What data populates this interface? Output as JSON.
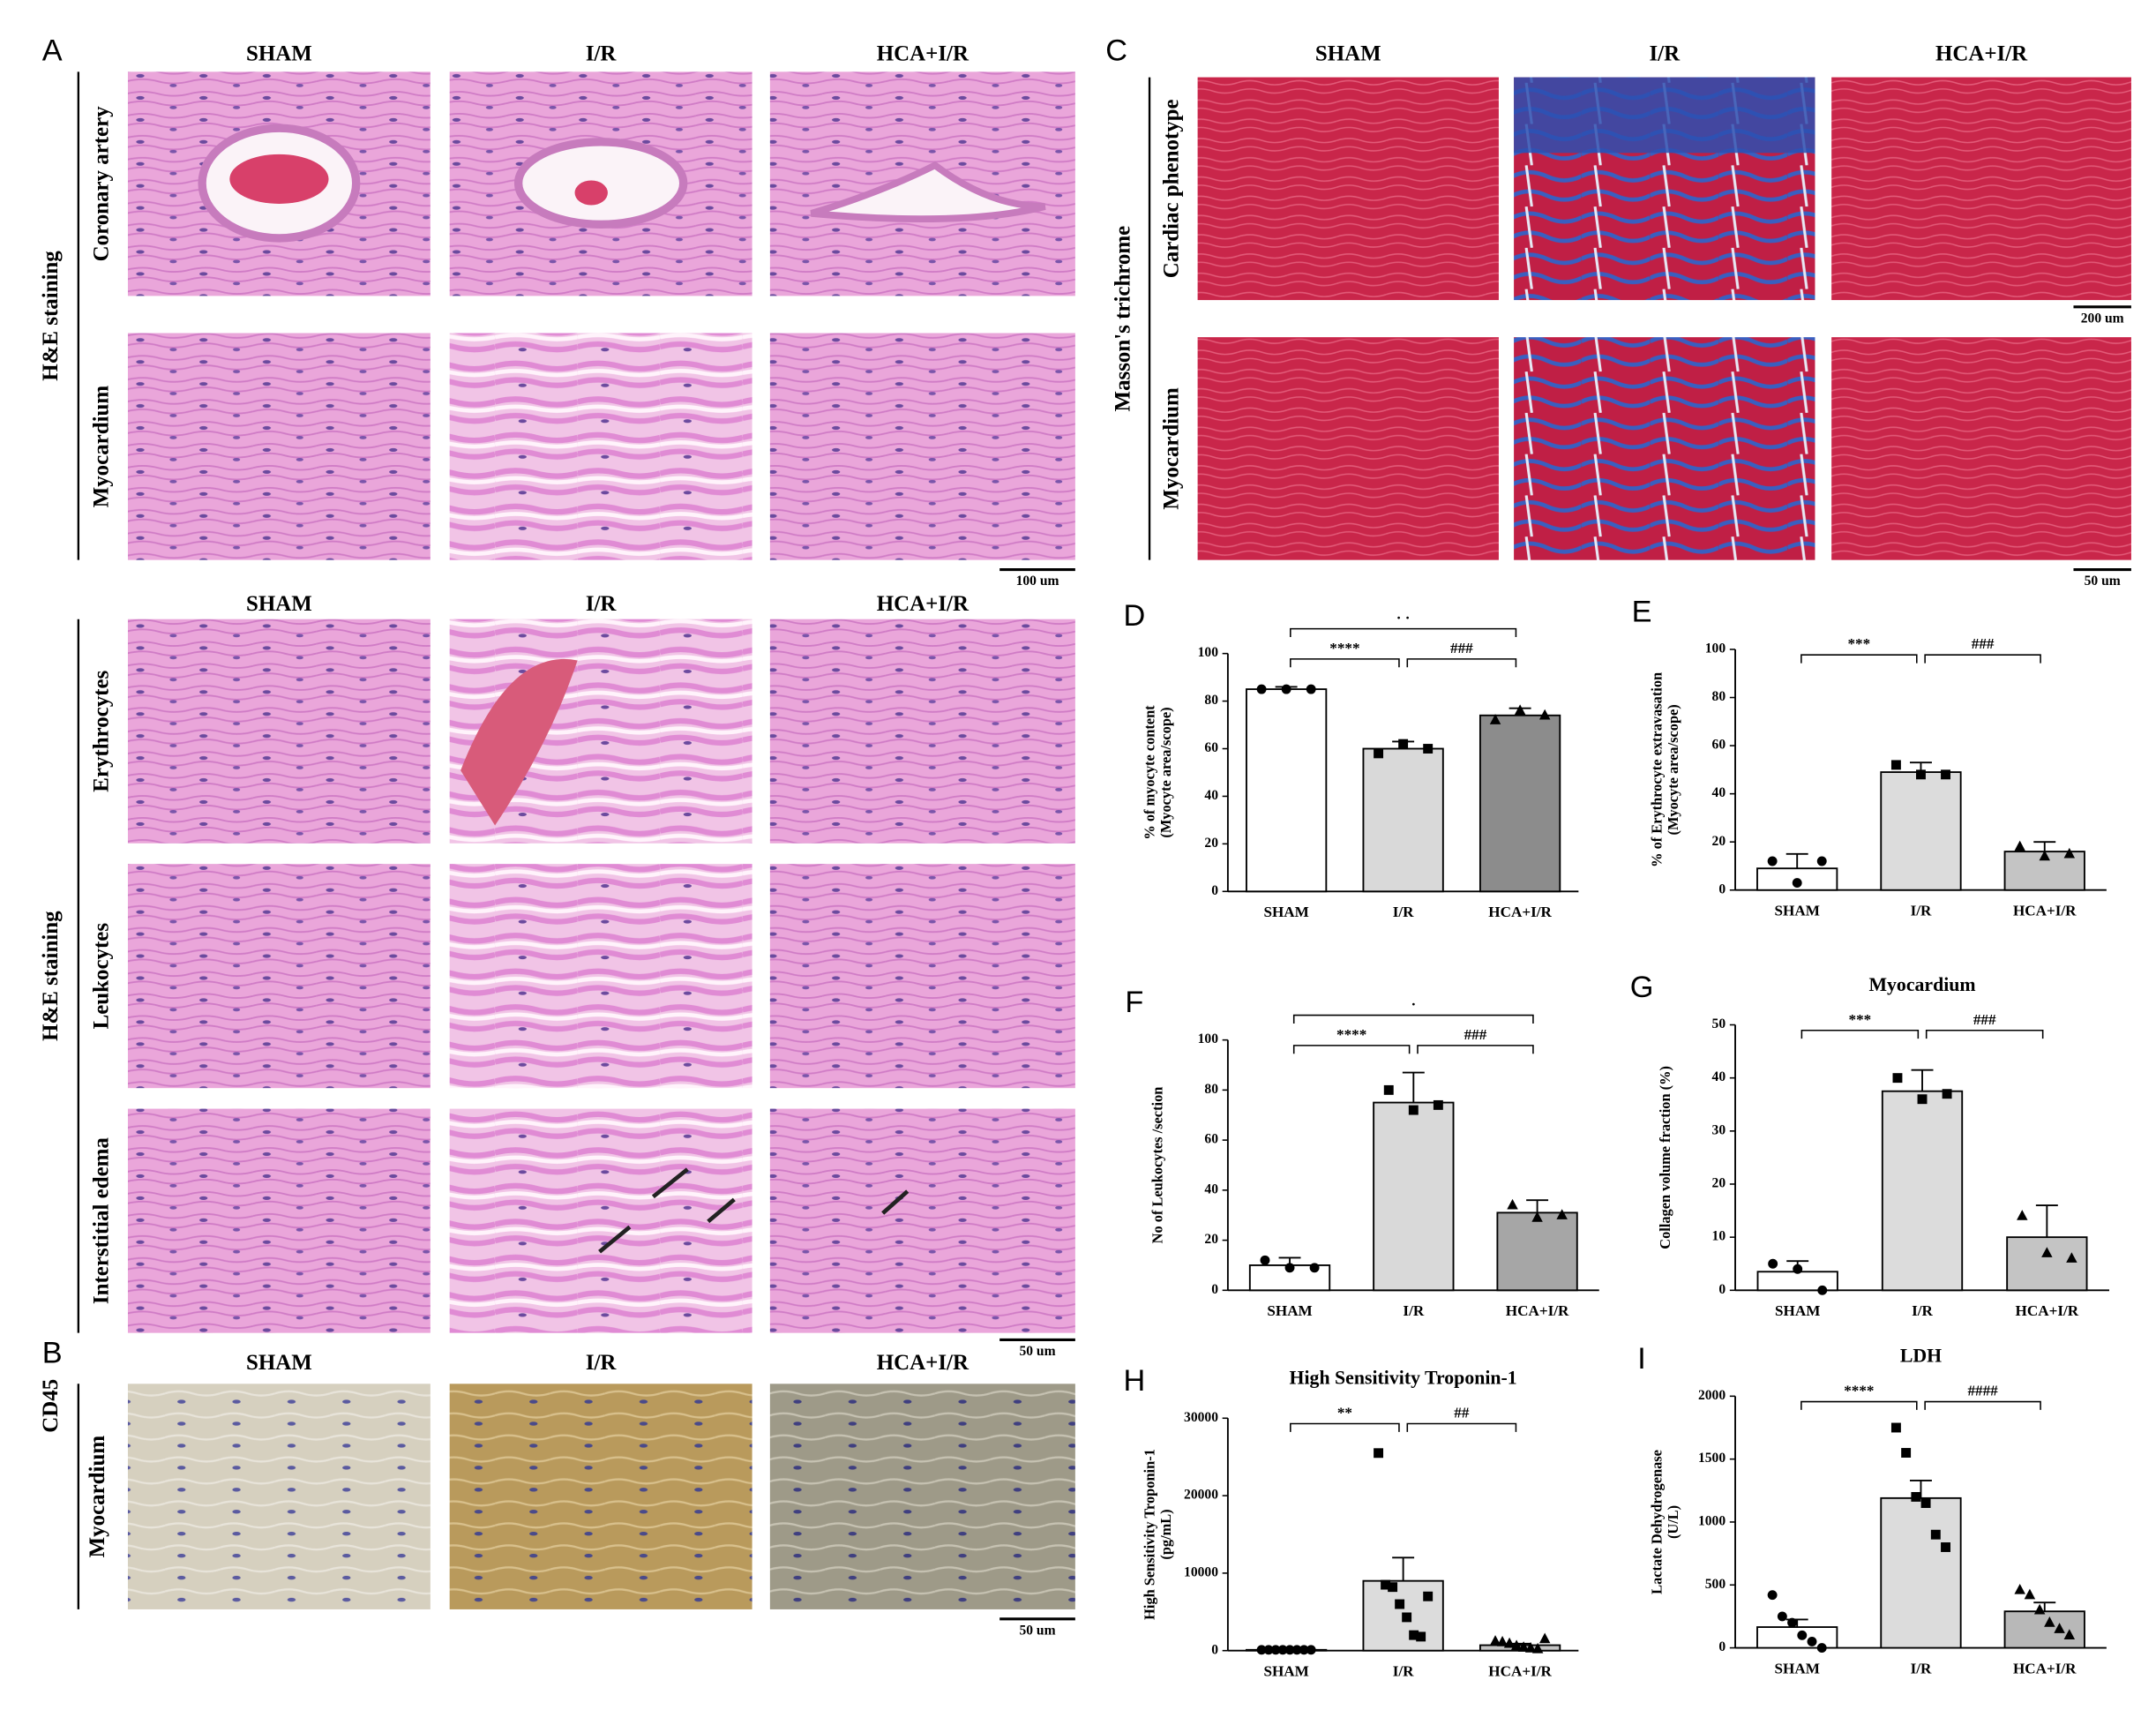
{
  "image_panels": [
    {
      "label": "A",
      "columns": [
        "SHAM",
        "I/R",
        "HCA+I/R"
      ],
      "section": "H&E staining",
      "rows": [
        "Coronary artery",
        "Myocardium"
      ],
      "scale_bars": [
        "100 um"
      ]
    },
    {
      "columns": [
        "SHAM",
        "I/R",
        "HCA+I/R"
      ],
      "section": "H&E staining",
      "rows": [
        "Erythrocytes",
        "Leukocytes",
        "Interstitial edema"
      ],
      "scale_bars": [
        "50 um"
      ]
    },
    {
      "label": "B",
      "columns": [
        "SHAM",
        "I/R",
        "HCA+I/R"
      ],
      "section": "CD45",
      "rows": [
        "Myocardium"
      ],
      "scale_bars": [
        "50 um"
      ]
    },
    {
      "label": "C",
      "columns": [
        "SHAM",
        "I/R",
        "HCA+I/R"
      ],
      "section": "Masson's trichrome",
      "rows": [
        "Cardiac phenotype",
        "Myocardium"
      ],
      "scale_bars": [
        "200 um",
        "50 um"
      ]
    }
  ],
  "chart_data": [
    {
      "type": "bar",
      "label": "D",
      "y_label": [
        "% of myocyte content",
        "(Myocyte area/scope)"
      ],
      "categories": [
        "SHAM",
        "I/R",
        "HCA+I/R"
      ],
      "values": [
        85,
        60,
        74
      ],
      "errors": [
        1,
        3,
        3
      ],
      "points": [
        [
          85,
          85,
          85
        ],
        [
          58,
          62,
          60
        ],
        [
          72,
          76,
          74
        ]
      ],
      "colors": [
        "#ffffff",
        "#d9d9d9",
        "#8c8c8c"
      ],
      "markers": [
        "circle",
        "square",
        "triangle"
      ],
      "ylim": [
        0,
        100
      ],
      "yticks": [
        0,
        20,
        40,
        60,
        80,
        100
      ],
      "comparisons": [
        {
          "text": "****",
          "between": [
            0,
            1
          ]
        },
        {
          "text": "###",
          "between": [
            1,
            2
          ]
        },
        {
          "text": "· ·",
          "between": [
            0,
            2
          ]
        }
      ]
    },
    {
      "type": "bar",
      "label": "E",
      "y_label": [
        "% of Erythrocyte extravasation",
        "(Myocyte area/scope)"
      ],
      "categories": [
        "SHAM",
        "I/R",
        "HCA+I/R"
      ],
      "values": [
        9,
        49,
        16
      ],
      "errors": [
        6,
        4,
        4
      ],
      "points": [
        [
          12,
          3,
          12
        ],
        [
          52,
          48,
          48
        ],
        [
          18,
          14,
          15
        ]
      ],
      "colors": [
        "#ffffff",
        "#dcdcdc",
        "#c4c4c4"
      ],
      "markers": [
        "circle",
        "square",
        "triangle"
      ],
      "ylim": [
        0,
        100
      ],
      "yticks": [
        0,
        20,
        40,
        60,
        80,
        100
      ],
      "comparisons": [
        {
          "text": "***",
          "between": [
            0,
            1
          ]
        },
        {
          "text": "###",
          "between": [
            1,
            2
          ]
        }
      ]
    },
    {
      "type": "bar",
      "label": "F",
      "y_label": [
        "No of Leukocytes /section"
      ],
      "categories": [
        "SHAM",
        "I/R",
        "HCA+I/R"
      ],
      "values": [
        10,
        75,
        31
      ],
      "errors": [
        3,
        12,
        5
      ],
      "points": [
        [
          12,
          9,
          9
        ],
        [
          80,
          72,
          74
        ],
        [
          34,
          29,
          30
        ]
      ],
      "colors": [
        "#ffffff",
        "#d9d9d9",
        "#a6a6a6"
      ],
      "markers": [
        "circle",
        "square",
        "triangle"
      ],
      "ylim": [
        0,
        100
      ],
      "yticks": [
        0,
        20,
        40,
        60,
        80,
        100
      ],
      "comparisons": [
        {
          "text": "****",
          "between": [
            0,
            1
          ]
        },
        {
          "text": "###",
          "between": [
            1,
            2
          ]
        },
        {
          "text": "·",
          "between": [
            0,
            2
          ]
        }
      ]
    },
    {
      "type": "bar",
      "label": "G",
      "title": "Myocardium",
      "y_label": [
        "Collagen volume fraction (%)"
      ],
      "categories": [
        "SHAM",
        "I/R",
        "HCA+I/R"
      ],
      "values": [
        3.5,
        37.5,
        10
      ],
      "errors": [
        2,
        4,
        6
      ],
      "points": [
        [
          5,
          4,
          0
        ],
        [
          40,
          36,
          37
        ],
        [
          14,
          7,
          6
        ]
      ],
      "colors": [
        "#ffffff",
        "#dcdcdc",
        "#c4c4c4"
      ],
      "markers": [
        "circle",
        "square",
        "triangle"
      ],
      "ylim": [
        0,
        50
      ],
      "yticks": [
        0,
        10,
        20,
        30,
        40,
        50
      ],
      "comparisons": [
        {
          "text": "***",
          "between": [
            0,
            1
          ]
        },
        {
          "text": "###",
          "between": [
            1,
            2
          ]
        }
      ]
    },
    {
      "type": "bar",
      "label": "H",
      "title": "High Sensitivity Troponin-1",
      "y_label": [
        "High Sensitivity Troponin-1",
        "(pg/mL)"
      ],
      "categories": [
        "SHAM",
        "I/R",
        "HCA+I/R"
      ],
      "values": [
        100,
        9000,
        700
      ],
      "errors": [
        50,
        3000,
        200
      ],
      "points": [
        [
          100,
          100,
          100,
          100,
          100,
          100,
          100,
          100
        ],
        [
          25500,
          8500,
          8200,
          6000,
          4300,
          2000,
          1800,
          7000
        ],
        [
          1200,
          1100,
          900,
          600,
          400,
          300,
          200,
          1500
        ]
      ],
      "colors": [
        "#ffffff",
        "#dcdcdc",
        "#c4c4c4"
      ],
      "markers": [
        "circle",
        "square",
        "triangle"
      ],
      "ylim": [
        0,
        30000
      ],
      "yticks": [
        0,
        10000,
        20000,
        30000
      ],
      "comparisons": [
        {
          "text": "**",
          "between": [
            0,
            1
          ]
        },
        {
          "text": "##",
          "between": [
            1,
            2
          ]
        }
      ]
    },
    {
      "type": "bar",
      "label": "I",
      "title": "LDH",
      "y_label": [
        "Lactate Dehydrogenase",
        "(U/L)"
      ],
      "categories": [
        "SHAM",
        "I/R",
        "HCA+I/R"
      ],
      "values": [
        165,
        1190,
        290
      ],
      "errors": [
        60,
        140,
        70
      ],
      "points": [
        [
          420,
          250,
          200,
          100,
          50,
          0
        ],
        [
          1750,
          1550,
          1200,
          1150,
          900,
          800
        ],
        [
          460,
          420,
          300,
          200,
          150,
          100
        ]
      ],
      "colors": [
        "#ffffff",
        "#dcdcdc",
        "#b8b8b8"
      ],
      "markers": [
        "circle",
        "square",
        "triangle"
      ],
      "ylim": [
        0,
        2000
      ],
      "yticks": [
        0,
        500,
        1000,
        1500,
        2000
      ],
      "comparisons": [
        {
          "text": "****",
          "between": [
            0,
            1
          ]
        },
        {
          "text": "####",
          "between": [
            1,
            2
          ]
        }
      ]
    }
  ]
}
